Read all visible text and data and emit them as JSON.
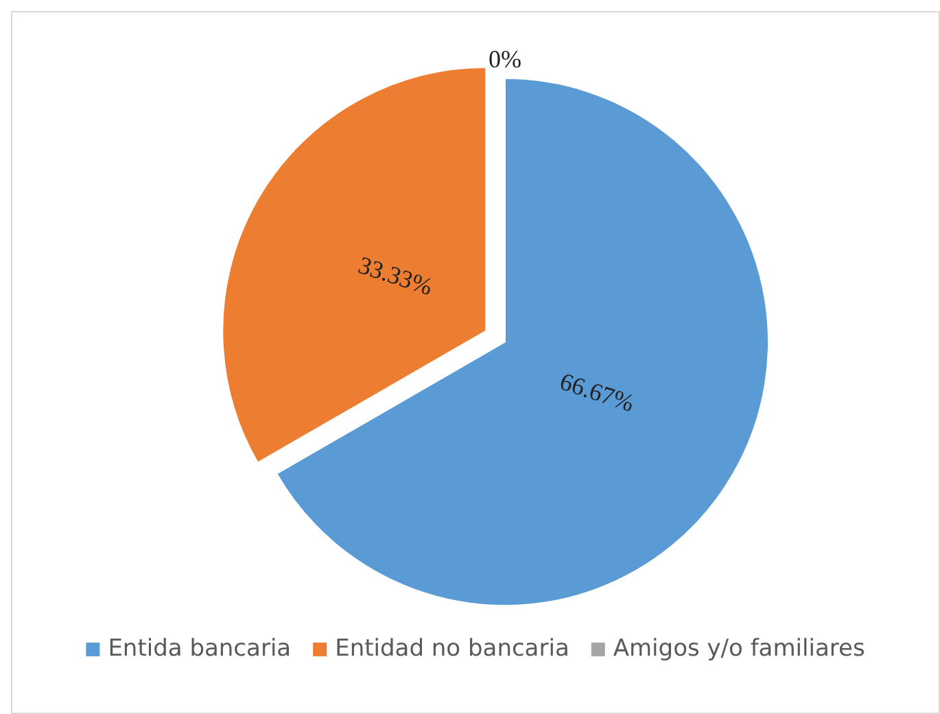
{
  "chart_data": {
    "type": "pie",
    "categories": [
      "Entida bancaria",
      "Entidad no bancaria",
      "Amigos y/o familiares"
    ],
    "values": [
      66.67,
      33.33,
      0
    ],
    "colors": [
      "#5b9bd5",
      "#ed7d31",
      "#a5a5a5"
    ],
    "value_labels": [
      "66.67%",
      "33.33%",
      "0%"
    ],
    "legend": "bottom"
  }
}
